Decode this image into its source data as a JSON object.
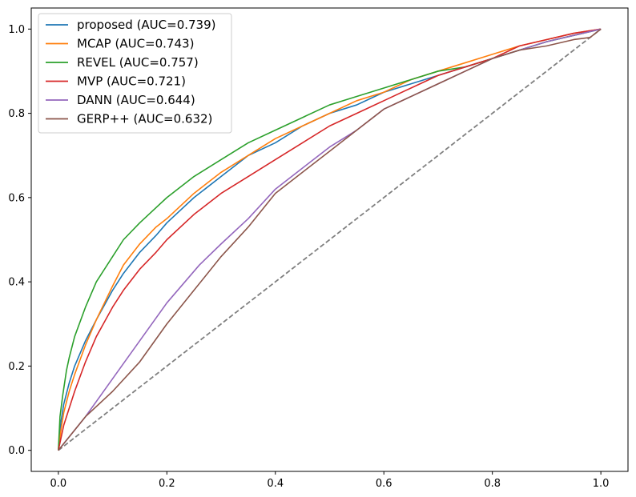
{
  "chart_data": {
    "type": "line",
    "title": "",
    "xlabel": "",
    "ylabel": "",
    "xlim": [
      -0.05,
      1.05
    ],
    "ylim": [
      -0.05,
      1.05
    ],
    "x_ticks": [
      "0.0",
      "0.2",
      "0.4",
      "0.6",
      "0.8",
      "1.0"
    ],
    "y_ticks": [
      "0.0",
      "0.2",
      "0.4",
      "0.6",
      "0.8",
      "1.0"
    ],
    "grid": false,
    "legend_position": "upper-left",
    "series": [
      {
        "name": "proposed (AUC=0.739)",
        "color": "#1f77b4",
        "x": [
          0,
          0.005,
          0.01,
          0.02,
          0.03,
          0.05,
          0.07,
          0.1,
          0.12,
          0.15,
          0.18,
          0.2,
          0.25,
          0.3,
          0.35,
          0.4,
          0.45,
          0.5,
          0.55,
          0.6,
          0.65,
          0.7,
          0.75,
          0.8,
          0.85,
          0.9,
          0.95,
          1.0
        ],
        "y": [
          0,
          0.07,
          0.11,
          0.16,
          0.2,
          0.26,
          0.31,
          0.38,
          0.42,
          0.47,
          0.51,
          0.54,
          0.6,
          0.65,
          0.7,
          0.73,
          0.77,
          0.8,
          0.82,
          0.85,
          0.87,
          0.89,
          0.91,
          0.93,
          0.95,
          0.97,
          0.985,
          1.0
        ]
      },
      {
        "name": "MCAP (AUC=0.743)",
        "color": "#ff7f0e",
        "x": [
          0,
          0.005,
          0.01,
          0.02,
          0.03,
          0.05,
          0.07,
          0.1,
          0.12,
          0.15,
          0.18,
          0.2,
          0.25,
          0.3,
          0.35,
          0.4,
          0.45,
          0.5,
          0.55,
          0.6,
          0.65,
          0.7,
          0.75,
          0.8,
          0.85,
          0.9,
          0.95,
          1.0
        ],
        "y": [
          0,
          0.05,
          0.09,
          0.14,
          0.18,
          0.25,
          0.31,
          0.39,
          0.44,
          0.49,
          0.53,
          0.55,
          0.61,
          0.66,
          0.7,
          0.74,
          0.77,
          0.8,
          0.83,
          0.85,
          0.88,
          0.9,
          0.92,
          0.94,
          0.96,
          0.975,
          0.99,
          1.0
        ]
      },
      {
        "name": "REVEL (AUC=0.757)",
        "color": "#2ca02c",
        "x": [
          0,
          0.003,
          0.008,
          0.015,
          0.02,
          0.03,
          0.05,
          0.07,
          0.1,
          0.12,
          0.15,
          0.2,
          0.25,
          0.3,
          0.35,
          0.4,
          0.45,
          0.5,
          0.55,
          0.6,
          0.65,
          0.7,
          0.75,
          0.8,
          0.85,
          0.9,
          0.95,
          1.0
        ],
        "y": [
          0,
          0.08,
          0.13,
          0.19,
          0.22,
          0.27,
          0.34,
          0.4,
          0.46,
          0.5,
          0.54,
          0.6,
          0.65,
          0.69,
          0.73,
          0.76,
          0.79,
          0.82,
          0.84,
          0.86,
          0.88,
          0.9,
          0.91,
          0.93,
          0.95,
          0.97,
          0.985,
          1.0
        ]
      },
      {
        "name": "MVP (AUC=0.721)",
        "color": "#d62728",
        "x": [
          0,
          0.005,
          0.01,
          0.02,
          0.03,
          0.05,
          0.07,
          0.1,
          0.12,
          0.15,
          0.18,
          0.2,
          0.25,
          0.3,
          0.35,
          0.4,
          0.45,
          0.5,
          0.55,
          0.6,
          0.65,
          0.7,
          0.75,
          0.8,
          0.85,
          0.9,
          0.95,
          1.0
        ],
        "y": [
          0,
          0.03,
          0.06,
          0.1,
          0.14,
          0.21,
          0.27,
          0.34,
          0.38,
          0.43,
          0.47,
          0.5,
          0.56,
          0.61,
          0.65,
          0.69,
          0.73,
          0.77,
          0.8,
          0.83,
          0.86,
          0.89,
          0.91,
          0.93,
          0.96,
          0.975,
          0.99,
          1.0
        ]
      },
      {
        "name": "DANN (AUC=0.644)",
        "color": "#9467bd",
        "x": [
          0,
          0.05,
          0.1,
          0.15,
          0.2,
          0.26,
          0.3,
          0.35,
          0.4,
          0.45,
          0.5,
          0.55,
          0.6,
          0.65,
          0.7,
          0.75,
          0.8,
          0.85,
          0.9,
          0.95,
          1.0
        ],
        "y": [
          0,
          0.08,
          0.17,
          0.26,
          0.35,
          0.44,
          0.49,
          0.55,
          0.62,
          0.67,
          0.72,
          0.76,
          0.81,
          0.84,
          0.87,
          0.9,
          0.93,
          0.95,
          0.97,
          0.985,
          1.0
        ]
      },
      {
        "name": "GERP++ (AUC=0.632)",
        "color": "#8c564b",
        "x": [
          0,
          0.05,
          0.1,
          0.15,
          0.2,
          0.25,
          0.3,
          0.35,
          0.4,
          0.45,
          0.5,
          0.55,
          0.6,
          0.65,
          0.7,
          0.75,
          0.8,
          0.85,
          0.9,
          0.95,
          0.98,
          1.0
        ],
        "y": [
          0,
          0.08,
          0.14,
          0.21,
          0.3,
          0.38,
          0.46,
          0.53,
          0.61,
          0.66,
          0.71,
          0.76,
          0.81,
          0.84,
          0.87,
          0.9,
          0.93,
          0.95,
          0.96,
          0.975,
          0.98,
          1.0
        ]
      }
    ],
    "reference_line": {
      "x": [
        0,
        1
      ],
      "y": [
        0,
        1
      ],
      "color": "#808080",
      "style": "dashed"
    }
  }
}
